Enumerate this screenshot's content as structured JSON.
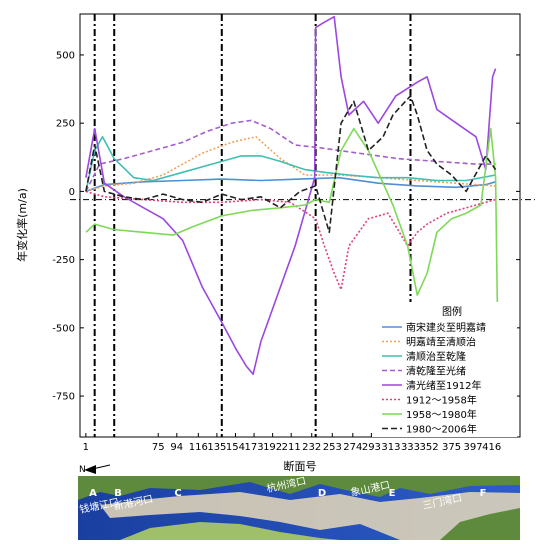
{
  "chart_data": {
    "type": "line",
    "title": "",
    "xlabel": "断面号",
    "ylabel": "年变化率(m/a)",
    "xlim": [
      -5,
      445
    ],
    "ylim": [
      -900,
      650
    ],
    "x_ticks": [
      1,
      75,
      94,
      116,
      135,
      154,
      173,
      192,
      211,
      232,
      253,
      274,
      293,
      313,
      333,
      352,
      375,
      397,
      416
    ],
    "y_ticks": [
      500,
      250,
      0,
      -250,
      -500,
      -750
    ],
    "dividers": [
      10,
      30,
      140,
      236,
      333
    ],
    "zero_dash_y": -30,
    "legend_title": "图例",
    "legend_position": "bottom-right",
    "north_arrow_label": "N",
    "grid": false,
    "series": [
      {
        "name": "南宋建炎至明嘉靖",
        "color": "#4f8fd9",
        "dash": "",
        "x": [
          1,
          20,
          60,
          100,
          140,
          180,
          220,
          260,
          300,
          340,
          380,
          410,
          420
        ],
        "y": [
          0,
          25,
          35,
          40,
          45,
          40,
          45,
          50,
          30,
          20,
          15,
          25,
          35
        ]
      },
      {
        "name": "明嘉靖至清顺治",
        "color": "#f0a25a",
        "dash": "2,2",
        "x": [
          1,
          20,
          50,
          80,
          100,
          120,
          150,
          175,
          200,
          225,
          260,
          300,
          340,
          380,
          420
        ],
        "y": [
          0,
          20,
          30,
          60,
          100,
          140,
          180,
          200,
          120,
          60,
          60,
          50,
          40,
          30,
          20
        ]
      },
      {
        "name": "清顺治至乾隆",
        "color": "#3fbfb0",
        "dash": "",
        "x": [
          1,
          10,
          18,
          30,
          50,
          70,
          100,
          130,
          160,
          180,
          200,
          225,
          245,
          270,
          300,
          330,
          360,
          390,
          420
        ],
        "y": [
          0,
          150,
          200,
          120,
          50,
          40,
          70,
          100,
          130,
          130,
          110,
          80,
          70,
          60,
          50,
          50,
          40,
          40,
          60
        ]
      },
      {
        "name": "清乾隆至光绪",
        "color": "#a35fd0",
        "dash": "5,3",
        "x": [
          1,
          15,
          40,
          70,
          100,
          125,
          150,
          170,
          190,
          215,
          240,
          280,
          320,
          360,
          400,
          420
        ],
        "y": [
          0,
          100,
          120,
          150,
          180,
          220,
          250,
          260,
          230,
          170,
          160,
          140,
          120,
          110,
          100,
          100
        ]
      },
      {
        "name": "清光绪至1912年",
        "color": "#9c47e0",
        "dash": "",
        "x": [
          1,
          10,
          20,
          40,
          60,
          80,
          100,
          120,
          140,
          155,
          165,
          172,
          180,
          195,
          215,
          235,
          236,
          245,
          255,
          262,
          270,
          285,
          300,
          318,
          340,
          350,
          360,
          380,
          400,
          410,
          417,
          420
        ],
        "y": [
          50,
          230,
          30,
          -20,
          -60,
          -100,
          -180,
          -350,
          -480,
          -580,
          -640,
          -670,
          -550,
          -400,
          -200,
          50,
          600,
          620,
          640,
          420,
          280,
          330,
          250,
          350,
          400,
          420,
          300,
          250,
          200,
          80,
          420,
          450
        ]
      },
      {
        "name": "1912～1958年",
        "color": "#e0407a",
        "dash": "2,2",
        "x": [
          1,
          20,
          60,
          100,
          140,
          180,
          210,
          236,
          245,
          255,
          262,
          270,
          290,
          310,
          330,
          340,
          350,
          370,
          390,
          410,
          420
        ],
        "y": [
          0,
          -20,
          -30,
          -40,
          -40,
          -30,
          -40,
          -100,
          -200,
          -300,
          -360,
          -200,
          -100,
          -80,
          -200,
          -150,
          -120,
          -80,
          -60,
          -40,
          -30
        ]
      },
      {
        "name": "1958～1980年",
        "color": "#7ed957",
        "dash": "",
        "x": [
          1,
          10,
          30,
          60,
          90,
          110,
          140,
          170,
          200,
          225,
          236,
          250,
          262,
          275,
          290,
          305,
          315,
          330,
          340,
          350,
          360,
          375,
          390,
          405,
          415,
          420,
          422
        ],
        "y": [
          -150,
          -120,
          -140,
          -150,
          -160,
          -130,
          -90,
          -70,
          -60,
          -50,
          -30,
          -40,
          150,
          230,
          150,
          30,
          -50,
          -200,
          -380,
          -300,
          -150,
          -100,
          -80,
          -50,
          230,
          50,
          -460
        ]
      },
      {
        "name": "1980～2006年",
        "color": "#222222",
        "dash": "6,3",
        "x": [
          1,
          10,
          20,
          40,
          60,
          80,
          100,
          120,
          140,
          160,
          180,
          200,
          220,
          236,
          250,
          262,
          275,
          290,
          305,
          315,
          333,
          340,
          350,
          360,
          375,
          390,
          410,
          420
        ],
        "y": [
          0,
          170,
          0,
          -20,
          -30,
          -10,
          -30,
          -40,
          -10,
          -30,
          -20,
          -60,
          0,
          20,
          -150,
          250,
          330,
          150,
          200,
          280,
          350,
          280,
          150,
          100,
          60,
          0,
          130,
          80
        ]
      }
    ]
  },
  "map_strip": {
    "section_labels": [
      "A",
      "B",
      "C",
      "D",
      "E",
      "F"
    ],
    "place_labels": [
      "钱塘江口",
      "新港河口",
      "杭州湾口",
      "象山港口",
      "三门湾口"
    ],
    "colors": {
      "sea_left": "#1a3fa0",
      "sea_right": "#2d5cc8",
      "land": "#5d8a3c",
      "land_light": "#9fbf6a",
      "tidal_flat": "#e8d9b8",
      "label_color": "#ffffff"
    }
  }
}
